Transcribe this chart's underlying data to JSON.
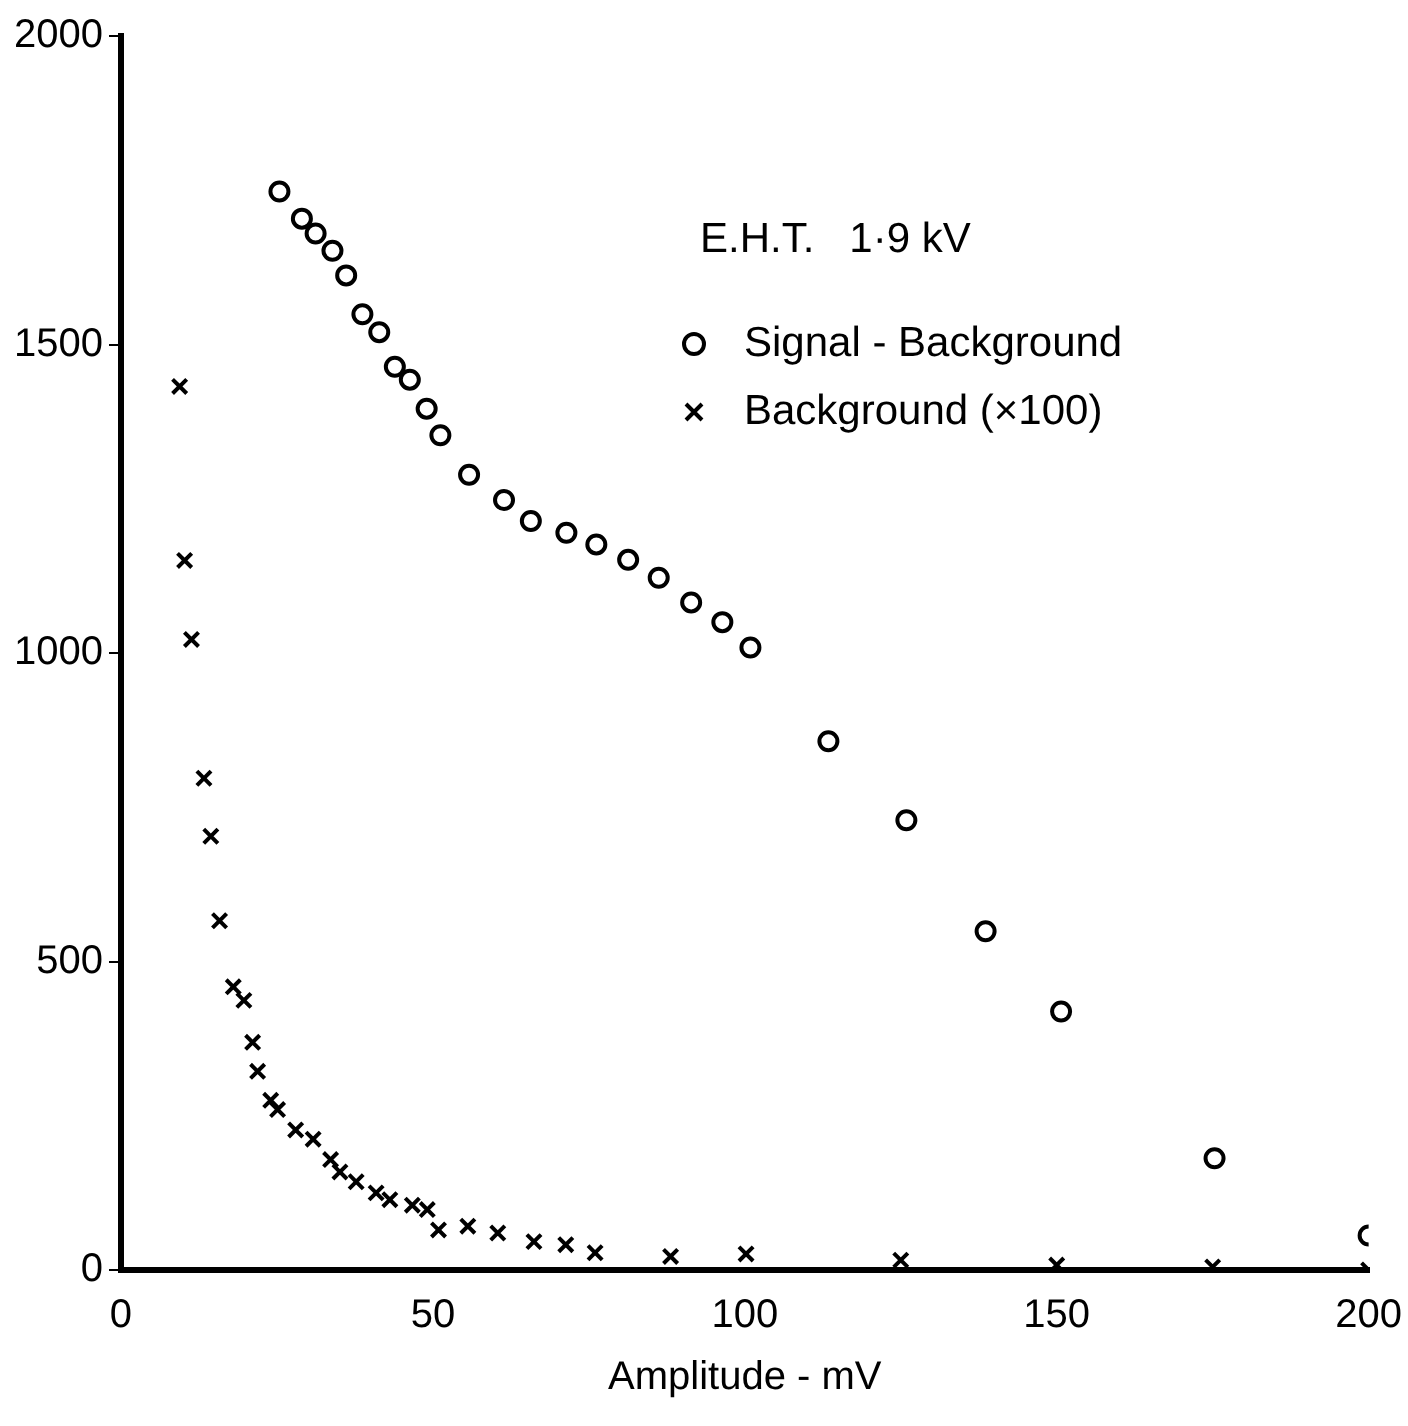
{
  "chart_data": {
    "type": "scatter",
    "xlabel": "Amplitude - mV",
    "annotations": [
      "E.H.T.   1·9 kV"
    ],
    "xlim": [
      0,
      200
    ],
    "xticks": [
      0,
      50,
      100,
      150,
      200
    ],
    "ylim": [
      0,
      2000
    ],
    "yticks": [
      0,
      500,
      1000,
      1500,
      2000
    ],
    "grid": false,
    "legend": "top right",
    "series": [
      {
        "name": "Signal - Background",
        "color": "#000000",
        "marker": "circle",
        "x": [
          25.4,
          29,
          31.2,
          33.9,
          36.1,
          38.7,
          41.4,
          43.9,
          46.3,
          49,
          51.2,
          55.8,
          61.4,
          65.7,
          71.4,
          76.2,
          81.3,
          86.2,
          91.4,
          96.4,
          100.9,
          113.4,
          125.9,
          138.6,
          150.7,
          175.3,
          200
        ],
        "values": [
          1748,
          1704,
          1680,
          1652,
          1612,
          1549,
          1520,
          1464,
          1443,
          1396,
          1353,
          1289,
          1248,
          1214,
          1195,
          1176,
          1151,
          1122,
          1082,
          1050,
          1009,
          857,
          729,
          549,
          419,
          181,
          56
        ]
      },
      {
        "name": "Background (×100)",
        "color": "#000000",
        "marker": "cross",
        "x": [
          9.4,
          10.2,
          11.3,
          13.3,
          14.4,
          15.8,
          18,
          19.7,
          21.1,
          21.9,
          24,
          25.1,
          28,
          30.8,
          33.6,
          35.1,
          37.7,
          40.9,
          43.1,
          46.7,
          49.1,
          50.9,
          55.6,
          60.4,
          66.2,
          71.3,
          76,
          88.1,
          100.2,
          125,
          150,
          175,
          200
        ],
        "values": [
          1432,
          1150,
          1022,
          797,
          703,
          566,
          459,
          437,
          369,
          322,
          275,
          260,
          227,
          212,
          179,
          159,
          143,
          125,
          114,
          105,
          98,
          65,
          71,
          60,
          46,
          41,
          28,
          22,
          26,
          16,
          8,
          5,
          0
        ]
      }
    ]
  }
}
